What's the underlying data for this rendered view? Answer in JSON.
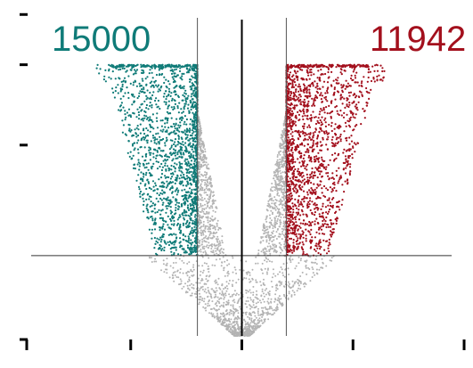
{
  "chart_data": {
    "type": "scatter",
    "title": "",
    "xlabel": "",
    "ylabel": "",
    "xlim": [
      -5,
      5.2
    ],
    "ylim": [
      0,
      16.5
    ],
    "log_fc_cutoff": 1,
    "significance_threshold_y": 4,
    "cap_y": 13.5,
    "down": {
      "count_label": "15000",
      "color": "#0f7b78",
      "x_range": [
        -3.1,
        -1
      ],
      "y_range": [
        4,
        13.5
      ]
    },
    "up": {
      "count_label": "11942",
      "color": "#a3101d",
      "x_range": [
        1,
        3.1
      ],
      "y_range": [
        4,
        13.5
      ]
    },
    "not_significant": {
      "color": "#b3b3b3",
      "x_range": [
        -2,
        2
      ],
      "y_range": [
        0,
        13.5
      ]
    }
  }
}
